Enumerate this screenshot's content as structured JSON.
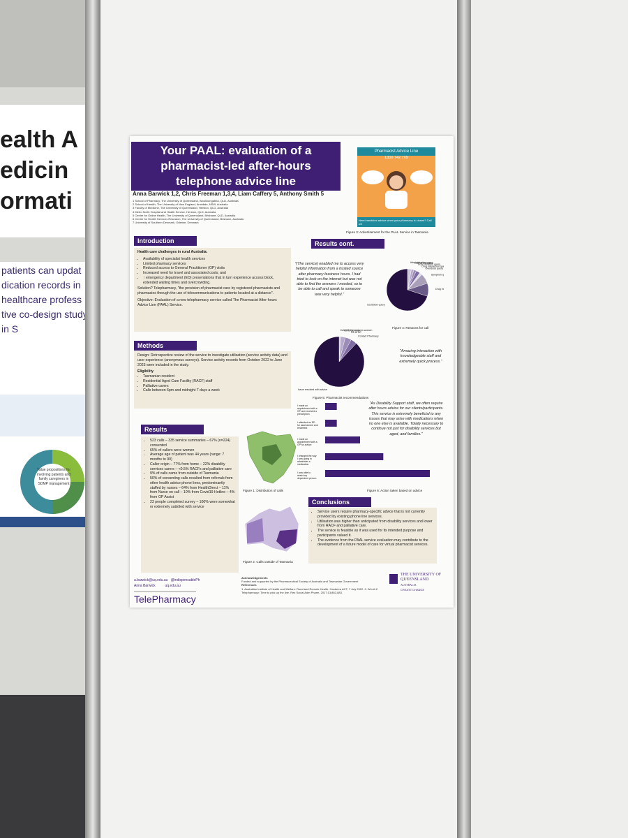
{
  "background": {
    "banner_lines": [
      "ealth A",
      "edicin",
      "ormati"
    ],
    "lines": [
      "patients can updat",
      "dication records in",
      "healthcare profess",
      "tive co-design study in S"
    ],
    "side_panel": "Value propositions for involving patients and family caregivers in SDMP management"
  },
  "poster": {
    "title": "Your PAAL: evaluation of a pharmacist-led after-hours telephone advice line",
    "authors": "Anna Barwick 1,2, Chris Freeman 1,3,4, Liam Caffery 5, Anthony Smith 5",
    "affiliations": [
      "1 School of Pharmacy, The University of Queensland, Woolloongabba, QLD, Australia",
      "2 School of Health, The University of New England, Armidale, NSW, Australia",
      "3 Faculty of Medicine, The University of Queensland, Herston, QLD, Australia",
      "4 Metro North Hospital and Health Service, Herston, QLD, Australia",
      "5 Centre for Online Health, The University of Queensland, Brisbane, QLD, Australia",
      "6 Centre for Health Services Research, The University of Queensland, Brisbane, Australia",
      "7 University of Southern Denmark, Odense, Denmark"
    ],
    "advert": {
      "title": "Pharmacist Advice Line",
      "phone": "1300 742 769",
      "tagline": "Need medicine advice when your pharmacy is closed? Call us!"
    },
    "introduction": {
      "heading": "Introduction",
      "subheading": "Health care challenges in rural Australia:",
      "bullets": [
        "Availability of specialist health services",
        "Limited pharmacy services",
        "Reduced access to General Practitioner (GP) visits",
        "Increased need for travel and associated costs; and",
        "↑ emergency department (ED) presentations that in turn experience access block, extended waiting times and overcrowding."
      ],
      "solution": "Solution? Telepharmacy, \"the provision of pharmacist care by registered pharmacists and pharmacies through the use of telecommunications to patients located at a distance\".",
      "objective": "Objective: Evaluation of a new telepharmacy service called The Pharmacist After-hours Advice Line (PAAL) Service."
    },
    "methods": {
      "heading": "Methods",
      "design": "Design: Retrospective review of the service to investigate utilisation (service activity data) and user experience (anonymous surveys). Service activity records from October 2022 to June 2023 were included in the study.",
      "eligibility_heading": "Eligibility",
      "eligibility": [
        "Tasmanian resident",
        "Residential Aged Care Facility (RACF) staff",
        "Palliative carers",
        "Calls between 6pm and midnight 7 days a week"
      ]
    },
    "results": {
      "heading": "Results",
      "items": [
        "523 calls – 335 service summaries – 67% (n=224) consented",
        "65% of callers were women",
        "Average age of patient was 44 years (range: 7 months to 90)",
        "Caller origin – 77% from home – 22% disability services carers – <0.5% RACFs and palliative care",
        "9% of calls came from outside of Tasmania",
        "50% of consenting calls resulted from referrals from other health advice phone lines, predominantly staffed by nurses – 64% from HealthDirect – 11% from Nurse on call – 10% from Covid19 Hotline – 4% from GP Assist",
        "23 people completed survey – 100% were somewhat or extremely satisfied with service"
      ]
    },
    "results_cont_heading": "Results cont.",
    "quotes": [
      "\"(The service) enabled me to access very helpful information from a trusted source after pharmacy business hours. I had tried to look on the internet but was not able to find the answers I needed, so to be able to call and speak to someone was very helpful.\"",
      "\"Amazing interaction with knowledgeable staff and extremely quick process.\"",
      "\"As Disability Support staff, we often require after hours advice for our clients/participants. This service is extremely beneficial to any issues that may arise with medications when no one else is available. Totally necessary to continue not just for disability services but aged, and families.\""
    ],
    "figures": {
      "fig1": "Figure 1: Distribution of calls",
      "fig2": "Figure 2: Calls outside of Tasmania",
      "fig3": "Figure 3: Advertisement for the PAAL Service in Tasmania",
      "fig4": {
        "caption": "Figure 4: Reasons for call",
        "categories": [
          "Administration query",
          "COVID infection",
          "Dose duration query",
          "Drug interaction query",
          "Overdose query",
          "Symptom query",
          "Drug information query",
          "Prescription query"
        ],
        "values": [
          3,
          2,
          2,
          3,
          2,
          8,
          10,
          70
        ]
      },
      "fig5": {
        "caption": "Figure 5: Pharmacist recommendations",
        "categories": [
          "Call 000 if symptoms worsen",
          "Go to ED now",
          "Go to GP",
          "Contact Pharmacy",
          "Issue resolved with advice"
        ],
        "values": [
          1,
          3,
          4,
          4,
          88
        ]
      },
      "fig6": {
        "caption": "Figure 6: Action taken based on advice",
        "categories": [
          "I made an appointment with a GP and received a prescription",
          "I attended an ED for assessment and treatment",
          "I made an appointment with a GP for advice",
          "I changed the way I was going to administer a medication",
          "I was able to assist my dependent person"
        ],
        "values": [
          2,
          2,
          6,
          10,
          18
        ]
      }
    },
    "conclusions": {
      "heading": "Conclusions",
      "items": [
        "Service users require pharmacy-specific advice that is not currently provided by existing phone line services.",
        "Utilisation was higher than anticipated from disability services and lower from RACF and palliative care.",
        "The service is feasible as it was used for its intended purpose and participants valued it.",
        "The evidence from the PAAL service evaluation may contribute to the development of a future model of care for virtual pharmacist services."
      ]
    },
    "contacts": [
      "a.barwick@uq.edu.au",
      "@indispensablePh",
      "Anna Barwick",
      "uq.edu.au"
    ],
    "brand": "TelePharmacy",
    "acknowledgements": {
      "heading": "Acknowledgements",
      "text": "Funded and supported by the Pharmaceutical Society of Australia and Tasmanian Government",
      "references_heading": "References",
      "references": "1. Australian Institute of Health and Welfare. Rural and Remote Health. Canberra ACT, 7 July 2022. 2. Win A.Z. Telepharmacy: Time to pick up the line. Res Social Adm Pharm. 2017;13:882-883."
    },
    "university": {
      "name": "THE UNIVERSITY OF QUEENSLAND",
      "country": "AUSTRALIA",
      "motto": "CREATE CHANGE"
    }
  }
}
